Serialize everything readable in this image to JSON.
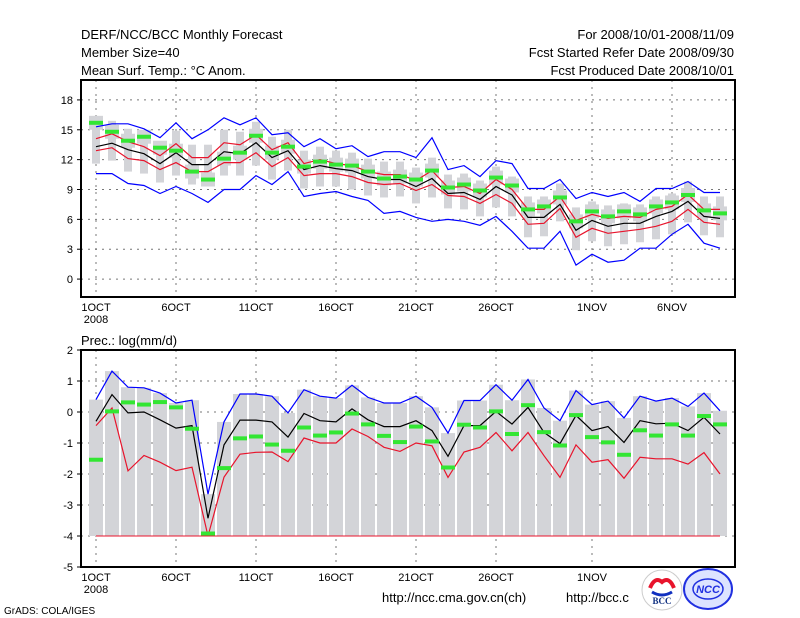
{
  "header": {
    "title": "DERF/NCC/BCC Monthly Forecast",
    "member_size": "Member Size=40",
    "variable": "Mean Surf. Temp.: °C Anom.",
    "period": "For 2008/10/01-2008/11/09",
    "started": "Fcst Started Refer Date 2008/09/30",
    "produced": "Fcst Produced Date 2008/10/01"
  },
  "footer": {
    "grads": "GrADS: COLA/IGES",
    "url_ncc": "http://ncc.cma.gov.cn(ch)",
    "url_bcc": "http://bcc.c",
    "logo_bcc": "BCC",
    "logo_ncc": "NCC"
  },
  "colors": {
    "mean": "#000000",
    "spread": "#e8142c",
    "extreme": "#0000ff",
    "obs": "#33e633",
    "box": "#d3d4d8"
  },
  "chart_data": [
    {
      "type": "line",
      "title": "Mean Surf. Temp.: °C Anom.",
      "x_ticks": [
        {
          "index": 0,
          "label": "1OCT",
          "sub": "2008"
        },
        {
          "index": 5,
          "label": "6OCT"
        },
        {
          "index": 10,
          "label": "11OCT"
        },
        {
          "index": 15,
          "label": "16OCT"
        },
        {
          "index": 20,
          "label": "21OCT"
        },
        {
          "index": 25,
          "label": "26OCT"
        },
        {
          "index": 31,
          "label": "1NOV"
        },
        {
          "index": 36,
          "label": "6NOV"
        }
      ],
      "y_ticks": [
        0,
        3,
        6,
        9,
        12,
        15,
        18
      ],
      "ylim": [
        -1.8,
        20
      ],
      "n_days": 40,
      "series": [
        {
          "name": "upper",
          "color_key": "extreme",
          "values": [
            15.3,
            15.6,
            15.6,
            15.1,
            14.2,
            15.7,
            14.1,
            15.0,
            16.2,
            15.5,
            16.2,
            14.5,
            14.7,
            13.3,
            14.1,
            13.1,
            13.4,
            12.3,
            12.8,
            12.8,
            12.2,
            14.2,
            11.0,
            11.4,
            10.3,
            11.9,
            11.6,
            9.1,
            9.1,
            10.0,
            8.1,
            8.7,
            8.3,
            8.7,
            7.8,
            9.1,
            9.1,
            9.8,
            8.7,
            8.7
          ]
        },
        {
          "name": "lower",
          "color_key": "extreme",
          "values": [
            10.6,
            10.6,
            9.6,
            9.4,
            8.6,
            9.3,
            8.6,
            7.7,
            9.0,
            9.0,
            10.4,
            9.5,
            10.8,
            8.3,
            8.6,
            8.8,
            8.3,
            7.9,
            6.6,
            6.8,
            6.2,
            5.8,
            6.0,
            5.8,
            5.4,
            6.3,
            4.8,
            3.1,
            3.1,
            4.8,
            1.4,
            2.5,
            1.7,
            1.9,
            3.1,
            3.1,
            4.5,
            5.5,
            3.6,
            3.1
          ]
        },
        {
          "name": "spread-high",
          "color_key": "spread",
          "values": [
            14.1,
            14.6,
            13.8,
            13.3,
            12.4,
            13.6,
            12.2,
            12.2,
            13.7,
            13.5,
            14.5,
            13.0,
            13.7,
            11.6,
            12.0,
            11.6,
            11.4,
            10.8,
            10.5,
            10.5,
            9.9,
            10.9,
            9.2,
            9.3,
            8.6,
            10.0,
            9.0,
            7.0,
            7.0,
            8.3,
            5.9,
            6.5,
            6.1,
            6.3,
            6.2,
            7.0,
            7.3,
            8.5,
            7.0,
            7.0
          ]
        },
        {
          "name": "spread-low",
          "color_key": "spread",
          "values": [
            12.9,
            13.2,
            12.1,
            11.9,
            11.0,
            11.7,
            10.8,
            10.8,
            11.7,
            11.7,
            12.7,
            11.3,
            12.2,
            10.4,
            10.6,
            10.6,
            10.3,
            9.7,
            9.5,
            9.6,
            8.9,
            9.5,
            8.4,
            8.3,
            7.6,
            8.5,
            7.6,
            5.5,
            5.6,
            7.1,
            4.2,
            5.1,
            4.6,
            4.8,
            5.0,
            5.3,
            5.8,
            7.0,
            5.7,
            5.5
          ]
        },
        {
          "name": "mean",
          "color_key": "mean",
          "values": [
            13.3,
            13.65,
            13.0,
            12.6,
            11.6,
            12.7,
            11.5,
            11.5,
            12.8,
            12.6,
            13.7,
            12.2,
            12.9,
            11.0,
            11.4,
            11.1,
            10.9,
            10.3,
            10.0,
            10.0,
            9.3,
            10.1,
            8.6,
            8.7,
            8.0,
            9.3,
            8.45,
            6.2,
            6.2,
            7.5,
            4.9,
            5.9,
            5.3,
            5.6,
            5.6,
            6.3,
            6.8,
            7.8,
            6.3,
            6.1
          ]
        }
      ],
      "obs": [
        15.7,
        14.8,
        13.9,
        14.3,
        13.2,
        12.9,
        10.8,
        10.0,
        12.1,
        12.7,
        14.4,
        12.7,
        13.3,
        11.3,
        11.8,
        11.5,
        11.4,
        10.8,
        10.1,
        10.3,
        10.0,
        10.9,
        9.2,
        9.5,
        8.9,
        10.2,
        9.4,
        7.0,
        7.3,
        8.2,
        5.8,
        6.8,
        6.3,
        6.8,
        6.5,
        7.3,
        7.7,
        8.45,
        6.9,
        6.6
      ]
    },
    {
      "type": "line",
      "title": "Prec.: log(mm/d)",
      "x_ticks": [
        {
          "index": 0,
          "label": "1OCT",
          "sub": "2008"
        },
        {
          "index": 5,
          "label": "6OCT"
        },
        {
          "index": 10,
          "label": "11OCT"
        },
        {
          "index": 15,
          "label": "16OCT"
        },
        {
          "index": 20,
          "label": "21OCT"
        },
        {
          "index": 25,
          "label": "26OCT"
        },
        {
          "index": 31,
          "label": "1NOV"
        }
      ],
      "y_ticks": [
        -5,
        -4,
        -3,
        -2,
        -1,
        0,
        1,
        2
      ],
      "ylim": [
        -5,
        2
      ],
      "n_days": 40,
      "floor": -4,
      "series": [
        {
          "name": "upper",
          "color_key": "extreme",
          "values": [
            0.4,
            1.32,
            0.8,
            0.78,
            0.61,
            0.29,
            0.38,
            -2.65,
            -0.32,
            0.58,
            0.58,
            0.51,
            -0.03,
            0.72,
            0.51,
            0.45,
            0.86,
            0.47,
            0.29,
            0.29,
            0.51,
            0.15,
            -0.68,
            0.37,
            0.37,
            0.88,
            0.38,
            1.05,
            0.13,
            -0.28,
            0.69,
            0.24,
            0.35,
            -0.19,
            0.51,
            0.35,
            0.45,
            0.18,
            0.61,
            0.04
          ]
        },
        {
          "name": "lower",
          "color_key": "spread",
          "values": [
            -0.44,
            0.13,
            -1.9,
            -1.4,
            -1.62,
            -1.89,
            -1.78,
            -4.0,
            -2.1,
            -1.36,
            -1.3,
            -1.29,
            -1.6,
            -0.84,
            -1.0,
            -1.0,
            -0.55,
            -0.79,
            -1.14,
            -1.27,
            -1.0,
            -1.09,
            -2.11,
            -1.29,
            -1.14,
            -0.66,
            -1.25,
            -0.66,
            -1.41,
            -2.11,
            -1.06,
            -1.62,
            -1.54,
            -2.14,
            -1.46,
            -1.51,
            -1.51,
            -1.68,
            -1.31,
            -2.0
          ]
        },
        {
          "name": "mean",
          "color_key": "mean",
          "values": [
            -0.3,
            0.56,
            -0.03,
            0.0,
            -0.25,
            -0.52,
            -0.44,
            -3.43,
            -1.06,
            -0.26,
            -0.26,
            -0.32,
            -0.81,
            -0.05,
            -0.28,
            -0.32,
            0.1,
            -0.25,
            -0.47,
            -0.47,
            -0.28,
            -0.6,
            -1.43,
            -0.44,
            -0.44,
            0.02,
            -0.39,
            0.15,
            -0.66,
            -1.02,
            -0.11,
            -0.6,
            -0.47,
            -0.98,
            -0.28,
            -0.38,
            -0.36,
            -0.6,
            -0.17,
            -0.71
          ]
        }
      ],
      "obs": [
        -1.54,
        0.02,
        0.31,
        0.24,
        0.32,
        0.15,
        -0.54,
        -3.92,
        -1.81,
        -0.85,
        -0.79,
        -1.05,
        -1.25,
        -0.5,
        -0.76,
        -0.66,
        -0.05,
        -0.4,
        -0.77,
        -0.97,
        -0.47,
        -0.95,
        -1.79,
        -0.41,
        -0.5,
        0.02,
        -0.71,
        0.22,
        -0.65,
        -1.08,
        -0.1,
        -0.81,
        -0.98,
        -1.38,
        -0.59,
        -0.76,
        -0.4,
        -0.76,
        -0.13,
        -0.4
      ]
    }
  ]
}
